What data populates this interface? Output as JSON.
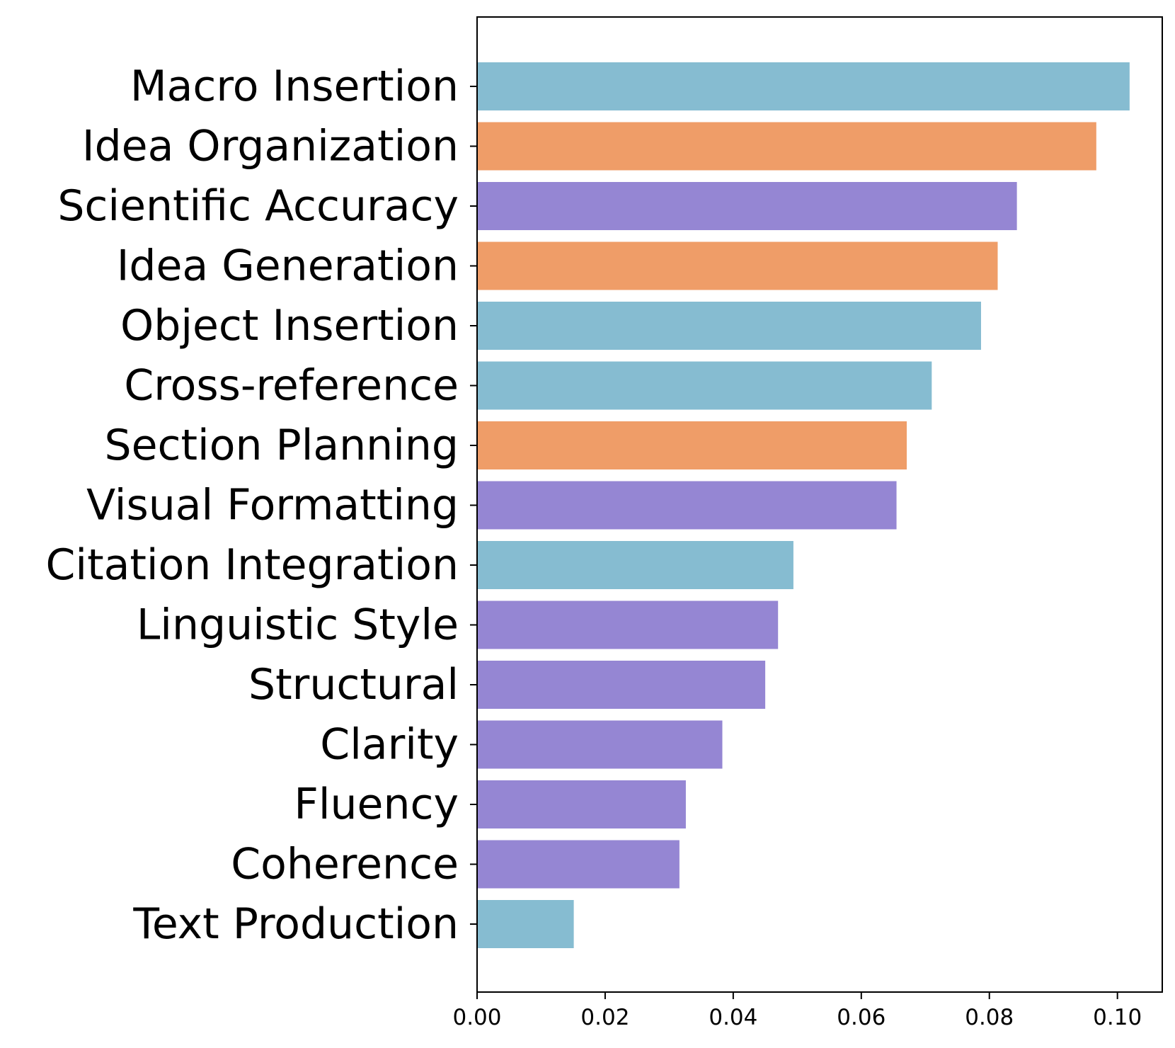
{
  "chart_data": {
    "type": "bar",
    "orientation": "horizontal",
    "title": "",
    "xlabel": "",
    "ylabel": "",
    "categories": [
      "Macro Insertion",
      "Idea Organization",
      "Scientific Accuracy",
      "Idea Generation",
      "Object Insertion",
      "Cross-reference",
      "Section Planning",
      "Visual Formatting",
      "Citation Integration",
      "Linguistic Style",
      "Structural",
      "Clarity",
      "Fluency",
      "Coherence",
      "Text Production"
    ],
    "values": [
      0.1019,
      0.0967,
      0.0843,
      0.0813,
      0.0787,
      0.071,
      0.0671,
      0.0655,
      0.0494,
      0.047,
      0.045,
      0.0383,
      0.0326,
      0.0316,
      0.0151
    ],
    "colors": [
      "#86bcd1",
      "#ef9d68",
      "#9586d3",
      "#ef9d68",
      "#86bcd1",
      "#86bcd1",
      "#ef9d68",
      "#9586d3",
      "#86bcd1",
      "#9586d3",
      "#9586d3",
      "#9586d3",
      "#9586d3",
      "#9586d3",
      "#86bcd1"
    ],
    "xlim": [
      0,
      0.107
    ],
    "xticks": [
      0.0,
      0.02,
      0.04,
      0.06,
      0.08,
      0.1
    ],
    "xtick_labels": [
      "0.00",
      "0.02",
      "0.04",
      "0.06",
      "0.08",
      "0.10"
    ],
    "grid": false,
    "legend": "none"
  }
}
